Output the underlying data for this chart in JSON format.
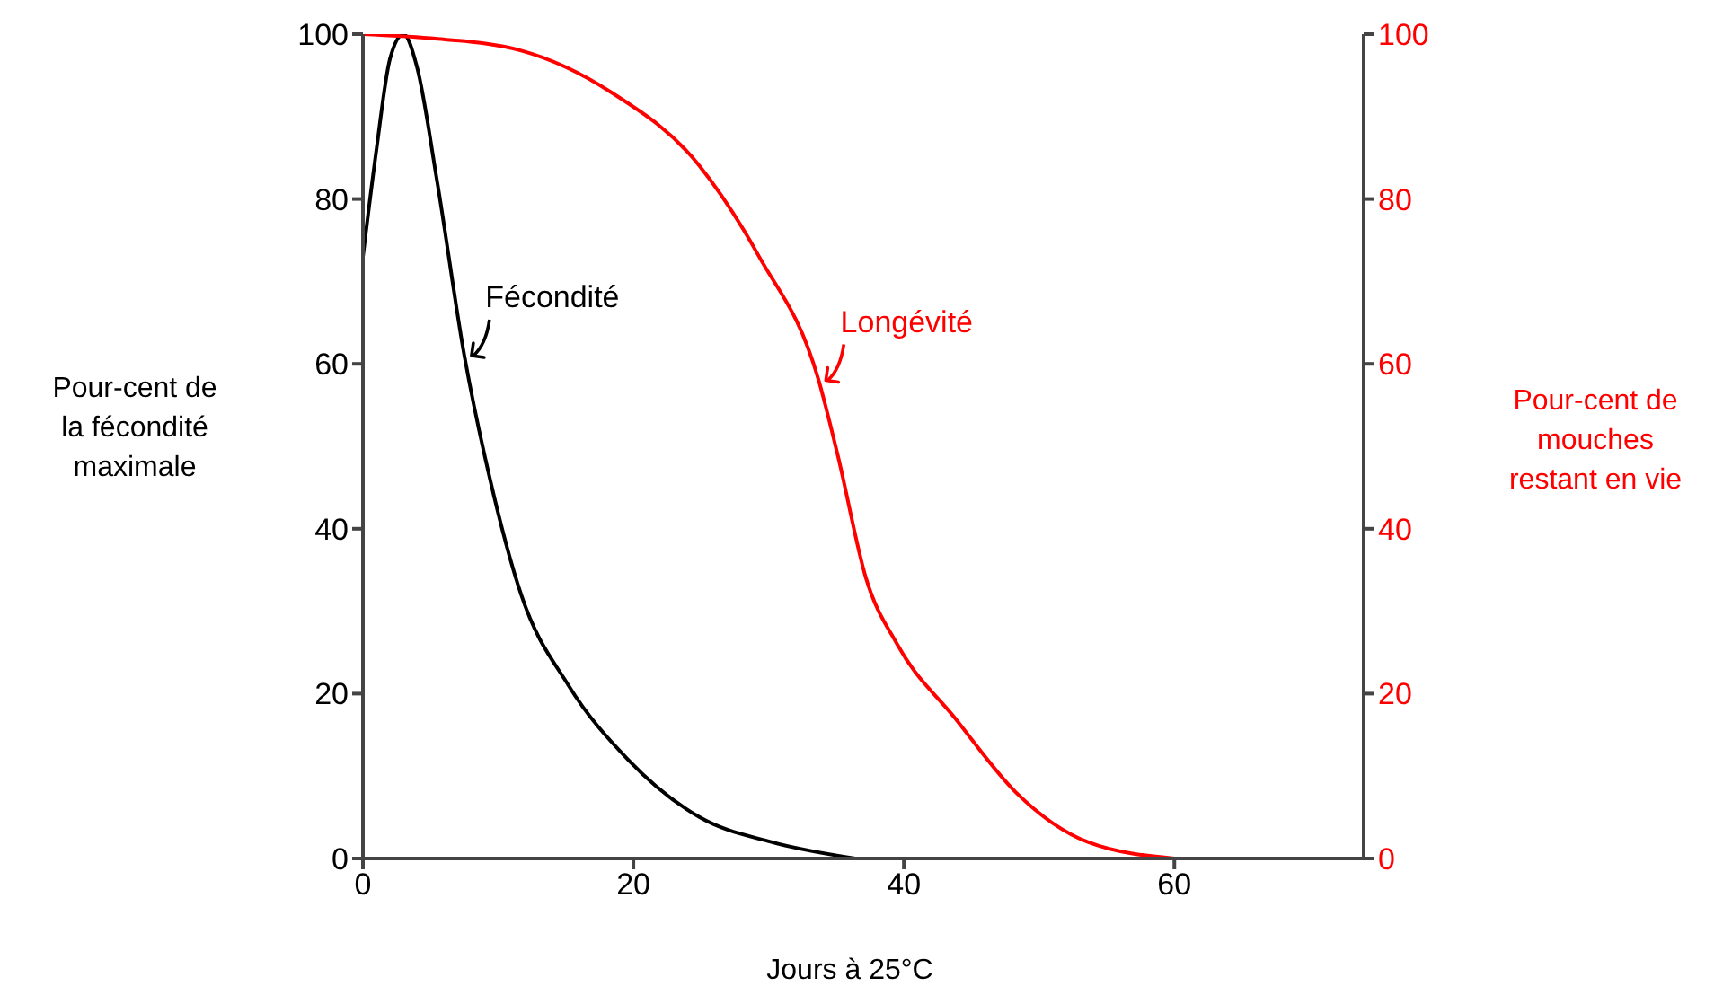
{
  "chart_data": {
    "type": "line",
    "xlabel": "Jours à 25°C",
    "ylabel": "Pour-cent de\nla fécondité\nmaximale",
    "y2label": "Pour-cent de\nmouches\nrestant en vie",
    "xlim": [
      0,
      74
    ],
    "xticks": [
      0,
      20,
      40,
      60
    ],
    "ylim": [
      0,
      100
    ],
    "yticks": [
      0,
      20,
      40,
      60,
      80,
      100
    ],
    "y2lim": [
      0,
      100
    ],
    "y2ticks": [
      0,
      20,
      40,
      60,
      80,
      100
    ],
    "marker": "none",
    "line_style": "solid",
    "series": [
      {
        "name": "Fécondité",
        "color": "#000000",
        "axis": "y",
        "x": [
          0,
          1,
          2,
          3,
          4,
          5.5,
          7.5,
          9.4,
          11.7,
          15.2,
          19.6,
          24.9,
          30.2,
          36.4
        ],
        "values": [
          73,
          86,
          97,
          100,
          96,
          82,
          61,
          46,
          32,
          21,
          12,
          5,
          2,
          0
        ]
      },
      {
        "name": "Longévité",
        "color": "#ff0000",
        "axis": "y2",
        "x": [
          0,
          5,
          11.7,
          18.3,
          24.9,
          29.3,
          33.7,
          35.1,
          37.2,
          39.5,
          43.8,
          48.3,
          53.6,
          60
        ],
        "values": [
          100,
          99.5,
          98,
          93,
          84,
          73,
          58,
          49,
          34,
          26,
          17,
          8,
          2,
          0
        ]
      }
    ]
  }
}
